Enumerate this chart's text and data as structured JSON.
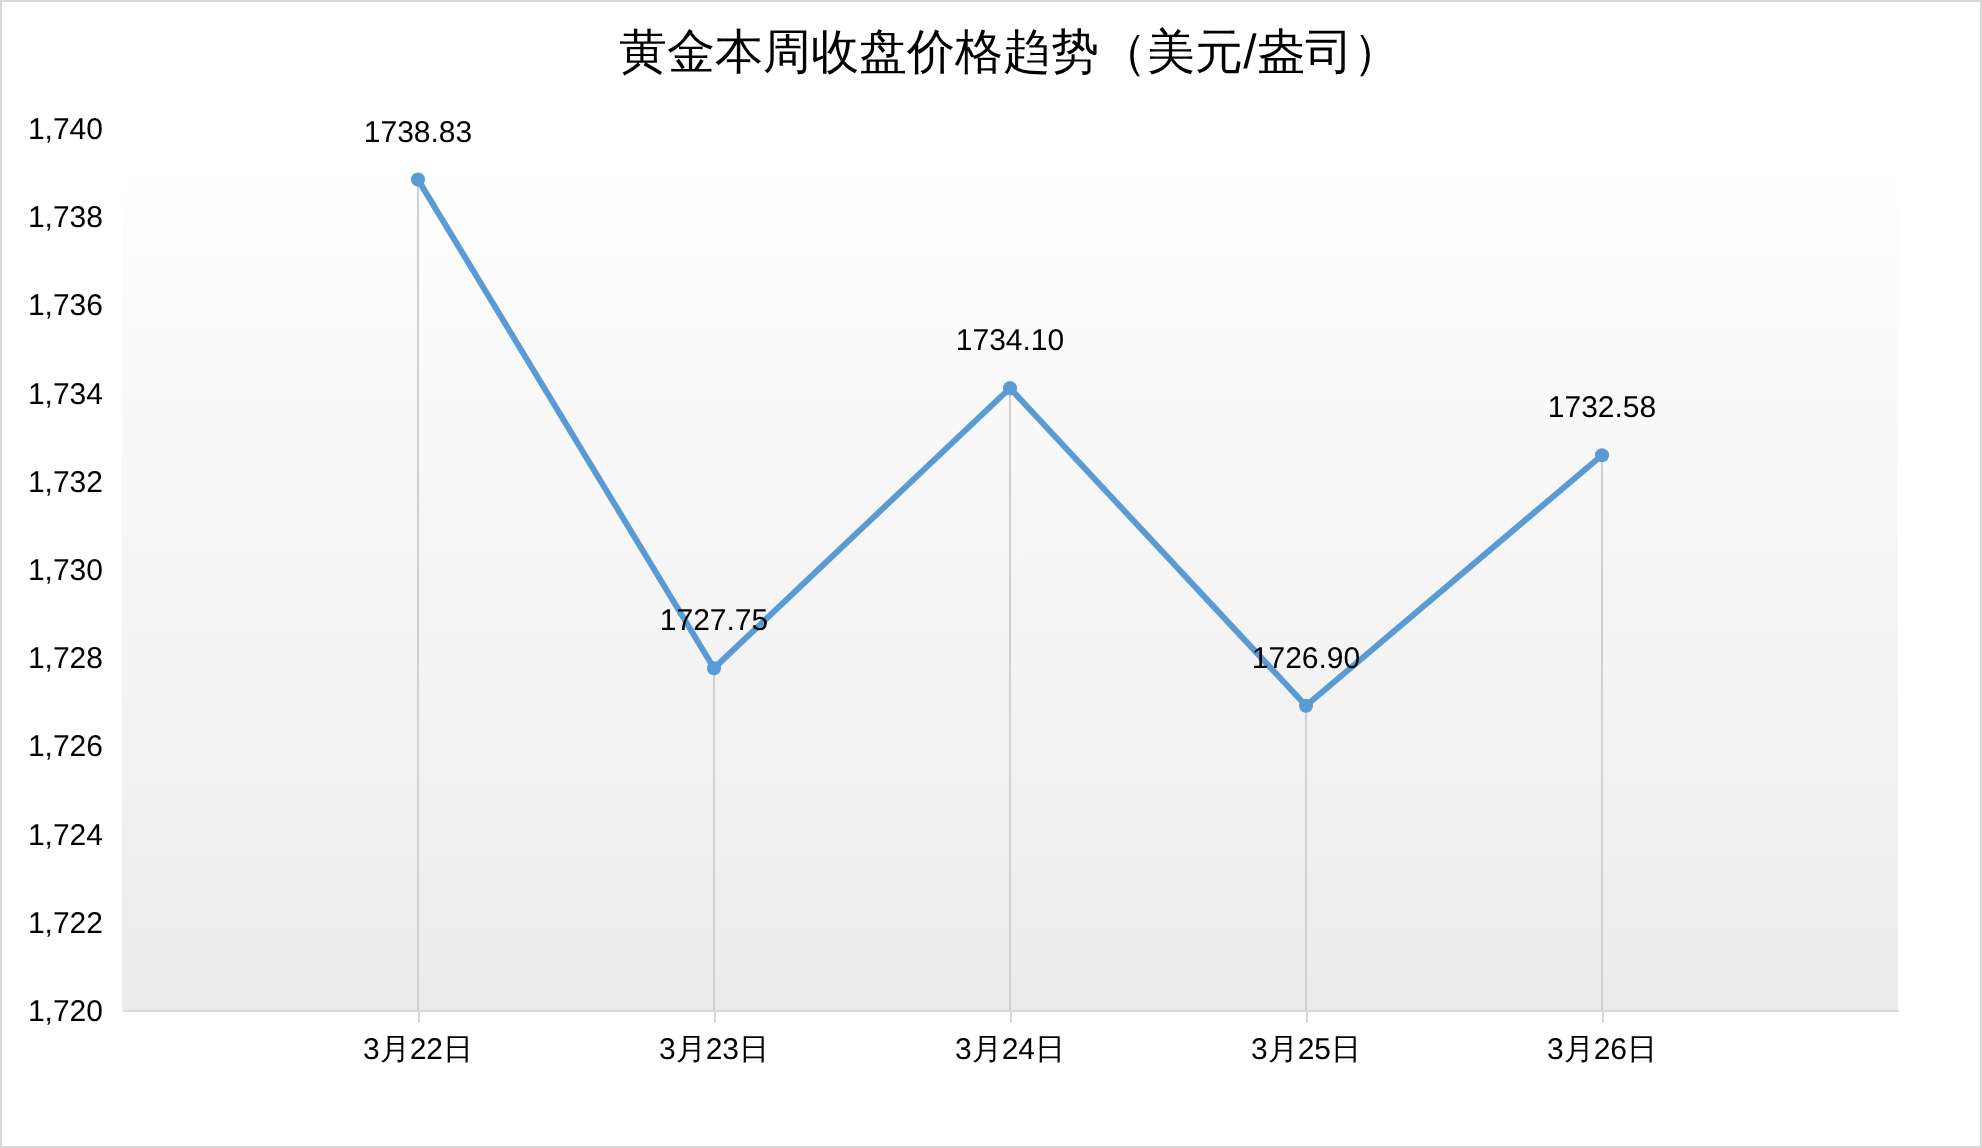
{
  "chart_data": {
    "type": "line",
    "title": "黄金本周收盘价格趋势（美元/盎司）",
    "categories": [
      "3月22日",
      "3月23日",
      "3月24日",
      "3月25日",
      "3月26日"
    ],
    "series": [
      {
        "color": "#5b9bd5",
        "values": [
          1738.83,
          1727.75,
          1734.1,
          1726.9,
          1732.58
        ],
        "value_labels": [
          "1738.83",
          "1727.75",
          "1734.10",
          "1726.90",
          "1732.58"
        ]
      }
    ],
    "ylim": [
      1720,
      1740
    ],
    "yticks": [
      {
        "value": 1720,
        "label": "1,720"
      },
      {
        "value": 1722,
        "label": "1,722"
      },
      {
        "value": 1724,
        "label": "1,724"
      },
      {
        "value": 1726,
        "label": "1,726"
      },
      {
        "value": 1728,
        "label": "1,728"
      },
      {
        "value": 1730,
        "label": "1,730"
      },
      {
        "value": 1732,
        "label": "1,732"
      },
      {
        "value": 1734,
        "label": "1,734"
      },
      {
        "value": 1736,
        "label": "1,736"
      },
      {
        "value": 1738,
        "label": "1,738"
      },
      {
        "value": 1740,
        "label": "1,740"
      }
    ],
    "grid": "x",
    "marker": "circle",
    "line_style": "solid"
  }
}
